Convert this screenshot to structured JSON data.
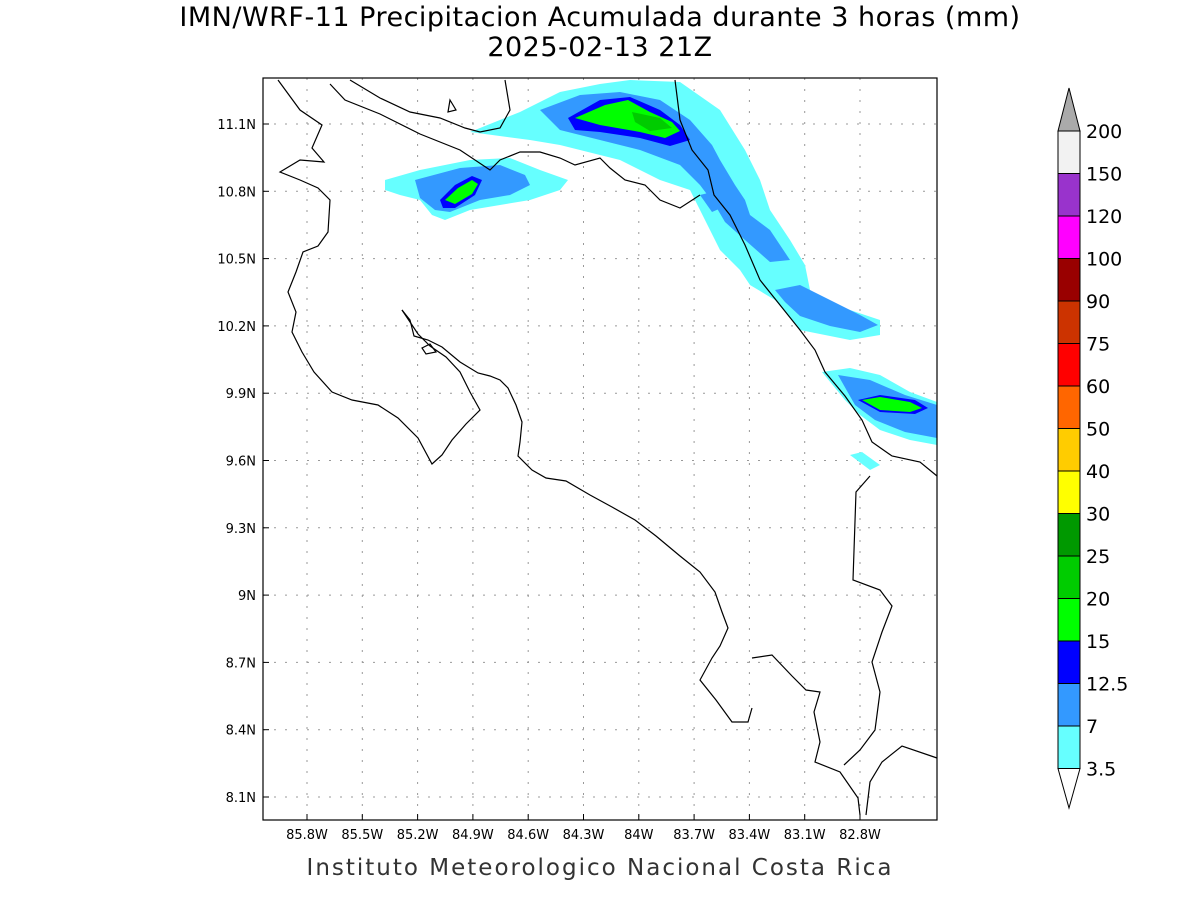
{
  "title": "IMN/WRF-11 Precipitacion Acumulada durante 3 horas (mm)",
  "subtitle": "2025-02-13 21Z",
  "footer": "Instituto Meteorologico Nacional Costa Rica",
  "lon_ticks": [
    "85.8W",
    "85.5W",
    "85.2W",
    "84.9W",
    "84.6W",
    "84.3W",
    "84W",
    "83.7W",
    "83.4W",
    "83.1W",
    "82.8W"
  ],
  "lat_ticks": [
    "11.1N",
    "10.8N",
    "10.5N",
    "10.2N",
    "9.9N",
    "9.6N",
    "9.3N",
    "9N",
    "8.7N",
    "8.4N",
    "8.1N"
  ],
  "legend": {
    "labels": [
      "200",
      "150",
      "120",
      "100",
      "90",
      "75",
      "60",
      "50",
      "40",
      "30",
      "25",
      "20",
      "15",
      "12.5",
      "7",
      "3.5"
    ],
    "colors": [
      "#f2f2f2",
      "#9933cc",
      "#ff00ff",
      "#990000",
      "#cc3300",
      "#ff0000",
      "#ff6600",
      "#ffcc00",
      "#ffff00",
      "#009900",
      "#00cc00",
      "#00ff00",
      "#0000ff",
      "#3399ff",
      "#66ffff"
    ],
    "over_color": "#aaaaaa",
    "under_color": "#ffffff"
  }
}
